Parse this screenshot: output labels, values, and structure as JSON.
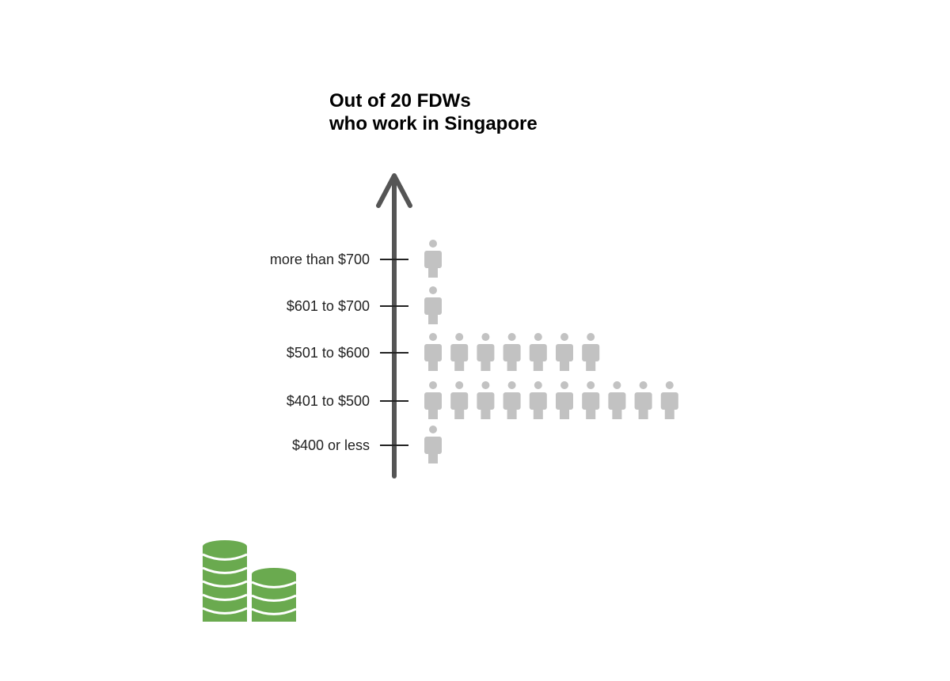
{
  "chart_data": {
    "type": "pictogram",
    "title_lines": [
      "Out of 20 FDWs",
      "who work in Singapore"
    ],
    "categories": [
      "$400 or less",
      "$401 to $500",
      "$501 to $600",
      "$601 to $700",
      "more than $700"
    ],
    "values": [
      1,
      10,
      7,
      1,
      1
    ],
    "total": 20,
    "unit_icon": "person-icon",
    "decoration_icon": "coin-stack-icon"
  },
  "colors": {
    "axis": "#555555",
    "tick": "#222222",
    "person": "#c2c2c2",
    "coin": "#6aaa4f",
    "coin_band": "#ffffff"
  }
}
